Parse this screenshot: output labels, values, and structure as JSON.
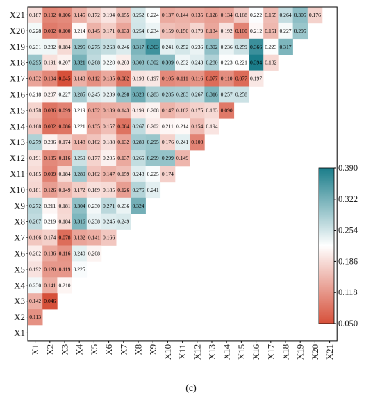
{
  "chart_data": {
    "type": "heatmap",
    "row_labels": [
      "X21",
      "X20",
      "X19",
      "X18",
      "X17",
      "X16",
      "X15",
      "X14",
      "X13",
      "X12",
      "X11",
      "X10",
      "X9",
      "X8",
      "X7",
      "X6",
      "X5",
      "X4",
      "X3",
      "X2",
      "X1"
    ],
    "col_labels": [
      "X1",
      "X2",
      "X3",
      "X4",
      "X5",
      "X6",
      "X7",
      "X8",
      "X9",
      "X10",
      "X11",
      "X12",
      "X13",
      "X14",
      "X15",
      "X16",
      "X17",
      "X18",
      "X19",
      "X20",
      "X21"
    ],
    "rows": [
      [
        0.187,
        0.102,
        0.106,
        0.145,
        0.172,
        0.194,
        0.155,
        0.252,
        0.224,
        0.137,
        0.144,
        0.135,
        0.128,
        0.134,
        0.168,
        0.222,
        0.155,
        0.264,
        0.305,
        0.176
      ],
      [
        0.228,
        0.092,
        0.1,
        0.214,
        0.145,
        0.171,
        0.133,
        0.254,
        0.234,
        0.159,
        0.15,
        0.179,
        0.134,
        0.192,
        0.1,
        0.212,
        0.151,
        0.227,
        0.295
      ],
      [
        0.231,
        0.232,
        0.184,
        0.295,
        0.275,
        0.263,
        0.246,
        0.317,
        0.363,
        0.241,
        0.252,
        0.236,
        0.302,
        0.236,
        0.259,
        0.366,
        0.223,
        0.317
      ],
      [
        0.295,
        0.191,
        0.207,
        0.321,
        0.268,
        0.228,
        0.203,
        0.303,
        0.302,
        0.309,
        0.232,
        0.243,
        0.28,
        0.223,
        0.221,
        0.394,
        0.182
      ],
      [
        0.132,
        0.104,
        0.045,
        0.143,
        0.112,
        0.135,
        0.082,
        0.193,
        0.197,
        0.105,
        0.111,
        0.116,
        0.077,
        0.11,
        0.077,
        0.197
      ],
      [
        0.218,
        0.207,
        0.227,
        0.285,
        0.245,
        0.239,
        0.298,
        0.328,
        0.283,
        0.285,
        0.283,
        0.267,
        0.316,
        0.257,
        0.258
      ],
      [
        0.178,
        0.086,
        0.099,
        0.219,
        0.132,
        0.139,
        0.143,
        0.199,
        0.208,
        0.147,
        0.162,
        0.175,
        0.183,
        0.09
      ],
      [
        0.168,
        0.082,
        0.086,
        0.221,
        0.135,
        0.157,
        0.084,
        0.267,
        0.202,
        0.211,
        0.214,
        0.154,
        0.194
      ],
      [
        0.279,
        0.206,
        0.174,
        0.148,
        0.162,
        0.188,
        0.132,
        0.289,
        0.295,
        0.176,
        0.241,
        0.1
      ],
      [
        0.191,
        0.105,
        0.116,
        0.259,
        0.177,
        0.205,
        0.137,
        0.265,
        0.299,
        0.299,
        0.149
      ],
      [
        0.185,
        0.099,
        0.184,
        0.289,
        0.162,
        0.147,
        0.159,
        0.243,
        0.225,
        0.174
      ],
      [
        0.181,
        0.126,
        0.149,
        0.172,
        0.189,
        0.185,
        0.126,
        0.276,
        0.241
      ],
      [
        0.272,
        0.211,
        0.181,
        0.304,
        0.23,
        0.271,
        0.236,
        0.324
      ],
      [
        0.267,
        0.219,
        0.184,
        0.316,
        0.238,
        0.245,
        0.249
      ],
      [
        0.166,
        0.174,
        0.078,
        0.132,
        0.141,
        0.166
      ],
      [
        0.202,
        0.136,
        0.116,
        0.24,
        0.208
      ],
      [
        0.192,
        0.12,
        0.119,
        0.225
      ],
      [
        0.23,
        0.141,
        0.21
      ],
      [
        0.142,
        0.046
      ],
      [
        0.113
      ],
      []
    ],
    "colorbar": {
      "min": 0.05,
      "max": 0.39,
      "ticks": [
        "0.390",
        "0.322",
        "0.254",
        "0.186",
        "0.118",
        "0.050"
      ],
      "colors": {
        "low": "#d6503a",
        "mid": "#ffffff",
        "high": "#1b7d8a"
      }
    },
    "grid": false
  },
  "caption": "(c)"
}
